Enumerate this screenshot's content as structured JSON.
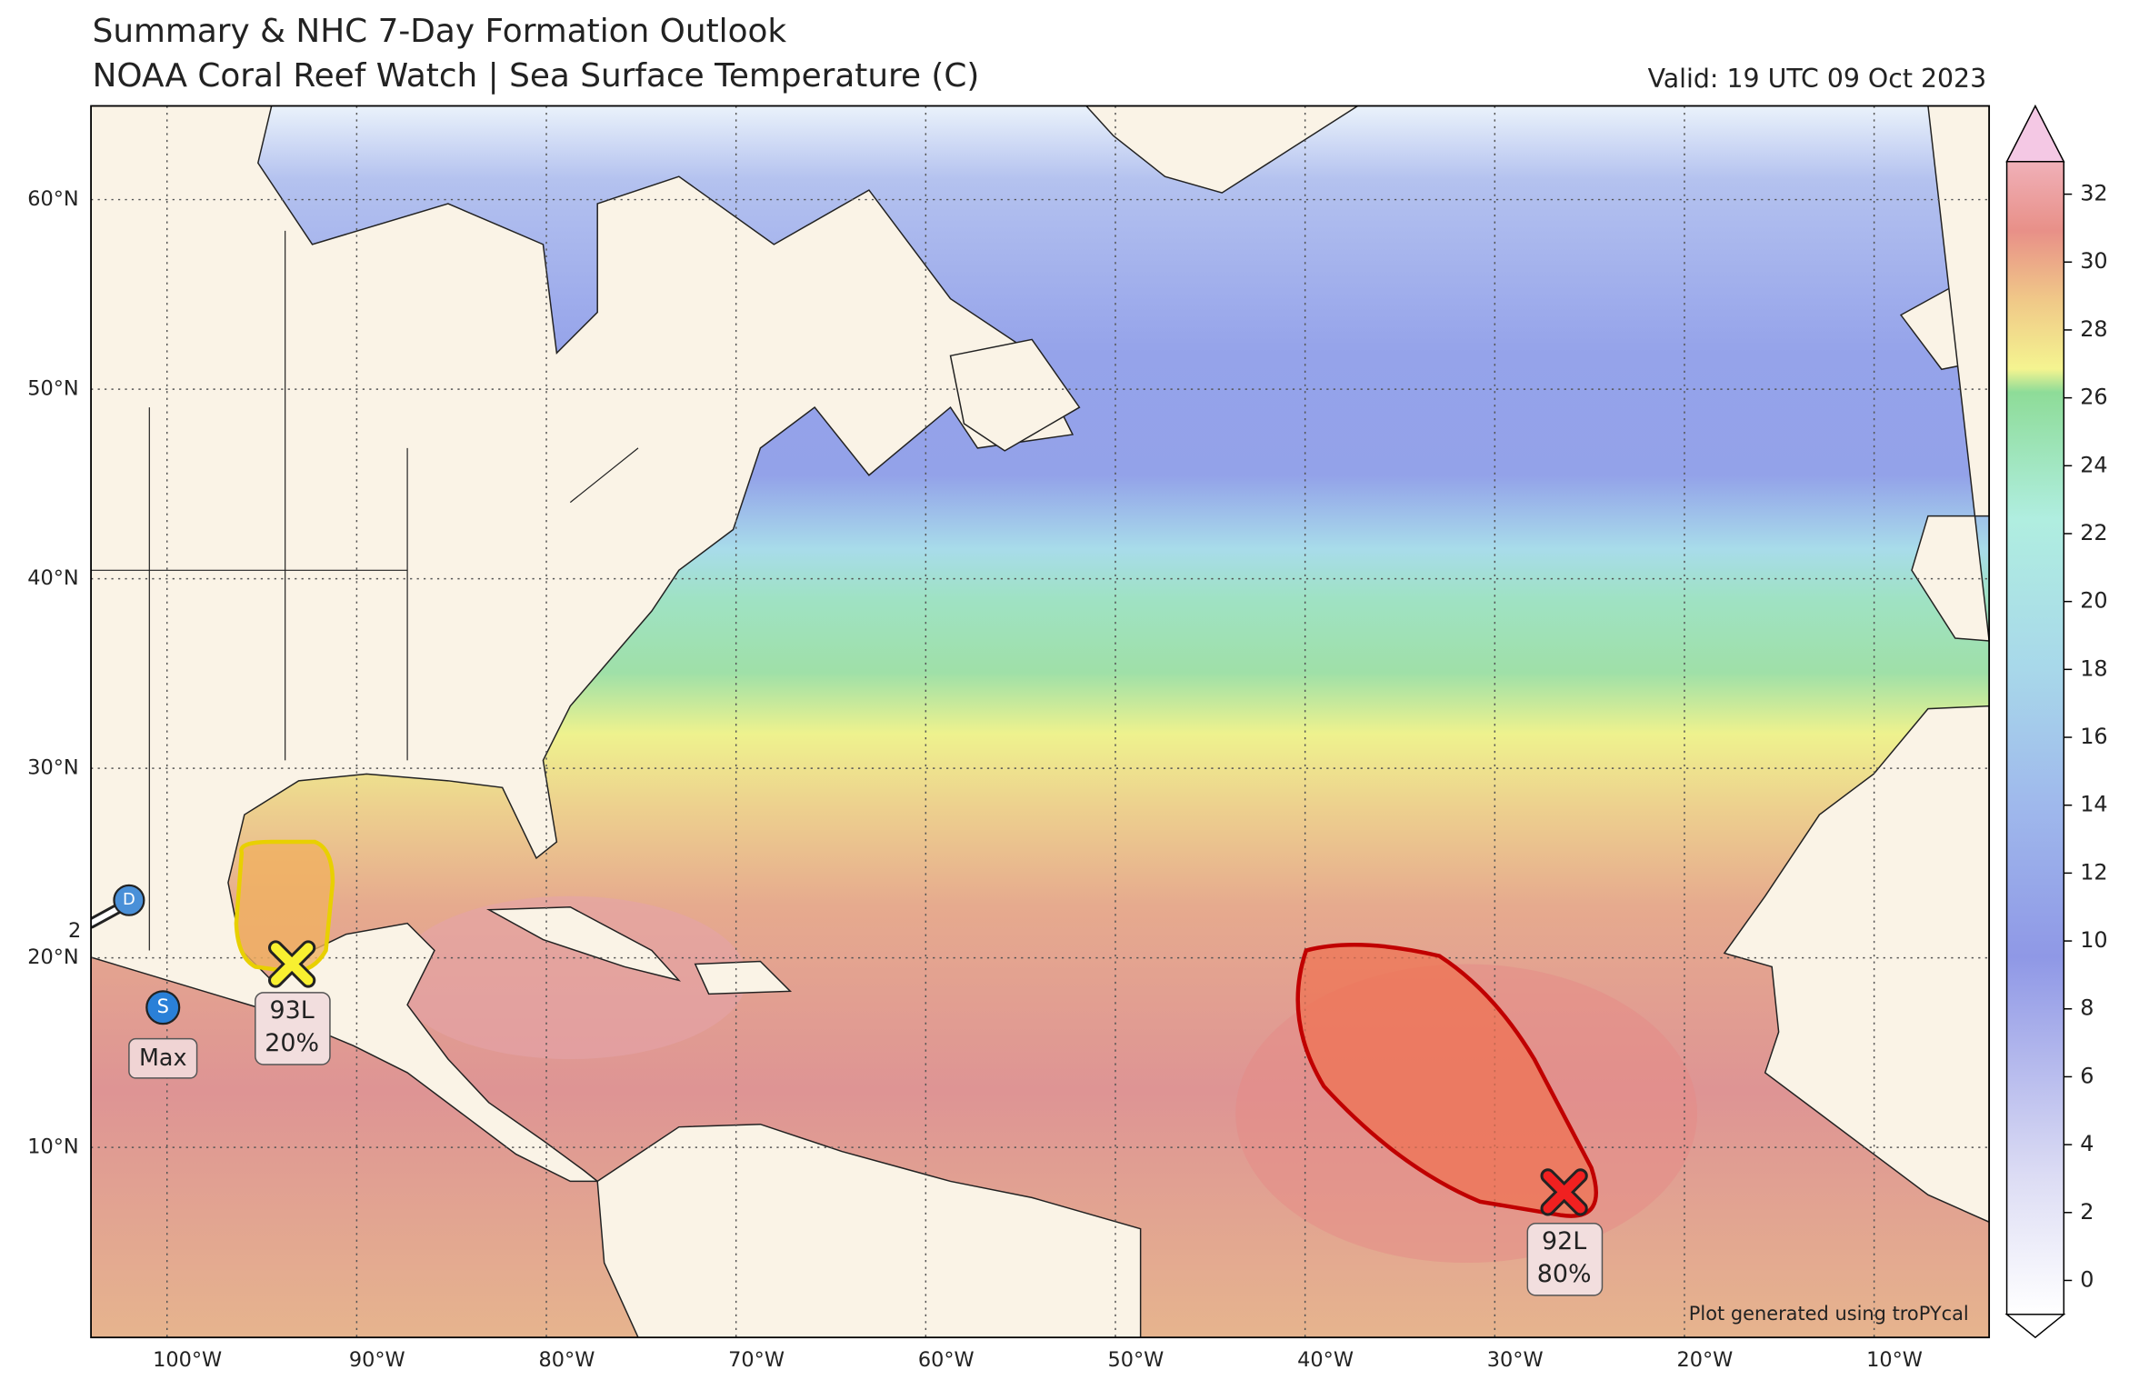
{
  "header": {
    "title": "Summary & NHC 7-Day Formation Outlook",
    "subtitle": "NOAA Coral Reef Watch | Sea Surface Temperature (C)",
    "valid": "Valid: 19 UTC 09 Oct 2023"
  },
  "map": {
    "lat_labels": [
      "60°N",
      "50°N",
      "40°N",
      "30°N",
      "20°N",
      "10°N"
    ],
    "lon_labels": [
      "100°W",
      "90°W",
      "80°W",
      "70°W",
      "60°W",
      "50°W",
      "40°W",
      "30°W",
      "20°W",
      "10°W"
    ],
    "credit": "Plot generated using troPYcal"
  },
  "colorbar": {
    "lim": [
      0,
      32
    ],
    "ticks": [
      0,
      2,
      4,
      6,
      8,
      10,
      12,
      14,
      16,
      18,
      20,
      22,
      24,
      26,
      28,
      30,
      32
    ]
  },
  "disturbances": [
    {
      "id": "92L",
      "probability": "80%"
    },
    {
      "id": "93L",
      "probability": "20%"
    }
  ],
  "storm_markers": [
    {
      "label": "D"
    },
    {
      "label": "S"
    }
  ],
  "storm_annotations": [
    "Max",
    "2"
  ]
}
